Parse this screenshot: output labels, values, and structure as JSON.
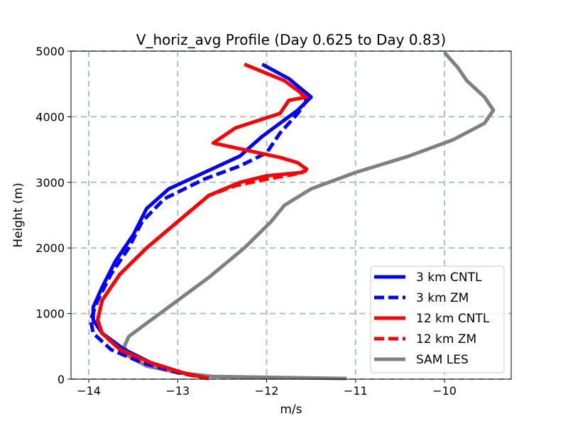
{
  "chart_data": {
    "type": "line",
    "title": "V_horiz_avg Profile (Day 0.625 to Day 0.83)",
    "xlabel": "m/s",
    "ylabel": "Height (m)",
    "xlim": [
      -14.2,
      -9.25
    ],
    "ylim": [
      0,
      5000
    ],
    "grid": true,
    "legend_position": "lower-right",
    "xticks": [
      -14,
      -13,
      -12,
      -11,
      -10
    ],
    "xtick_labels": [
      "−14",
      "−13",
      "−12",
      "−11",
      "−10"
    ],
    "yticks": [
      0,
      1000,
      2000,
      3000,
      4000,
      5000
    ],
    "ytick_labels": [
      "0",
      "1000",
      "2000",
      "3000",
      "4000",
      "5000"
    ],
    "series": [
      {
        "name": "3 km CNTL",
        "color": "#0000ff",
        "style": "solid",
        "points": [
          [
            -12.65,
            10
          ],
          [
            -12.95,
            100
          ],
          [
            -13.3,
            250
          ],
          [
            -13.6,
            450
          ],
          [
            -13.85,
            700
          ],
          [
            -13.95,
            900
          ],
          [
            -13.95,
            1100
          ],
          [
            -13.85,
            1400
          ],
          [
            -13.7,
            1800
          ],
          [
            -13.5,
            2200
          ],
          [
            -13.35,
            2600
          ],
          [
            -13.1,
            2900
          ],
          [
            -12.7,
            3150
          ],
          [
            -12.3,
            3400
          ],
          [
            -12.05,
            3700
          ],
          [
            -11.85,
            3900
          ],
          [
            -11.65,
            4100
          ],
          [
            -11.5,
            4300
          ],
          [
            -11.75,
            4580
          ],
          [
            -12.05,
            4800
          ]
        ]
      },
      {
        "name": "3 km ZM",
        "color": "#0000ff",
        "style": "dashed",
        "points": [
          [
            -12.65,
            10
          ],
          [
            -13.0,
            100
          ],
          [
            -13.4,
            250
          ],
          [
            -13.75,
            450
          ],
          [
            -13.95,
            700
          ],
          [
            -13.98,
            900
          ],
          [
            -13.9,
            1200
          ],
          [
            -13.75,
            1600
          ],
          [
            -13.55,
            2000
          ],
          [
            -13.4,
            2400
          ],
          [
            -13.15,
            2750
          ],
          [
            -12.7,
            3050
          ],
          [
            -12.3,
            3250
          ],
          [
            -12.0,
            3450
          ],
          [
            -11.85,
            3750
          ],
          [
            -11.65,
            4050
          ],
          [
            -11.55,
            4250
          ],
          [
            -11.7,
            4500
          ]
        ]
      },
      {
        "name": "12 km CNTL",
        "color": "#ff0000",
        "style": "solid",
        "points": [
          [
            -12.65,
            10
          ],
          [
            -12.95,
            100
          ],
          [
            -13.3,
            250
          ],
          [
            -13.65,
            450
          ],
          [
            -13.85,
            700
          ],
          [
            -13.9,
            900
          ],
          [
            -13.85,
            1200
          ],
          [
            -13.65,
            1600
          ],
          [
            -13.35,
            2000
          ],
          [
            -13.0,
            2400
          ],
          [
            -12.65,
            2800
          ],
          [
            -12.3,
            3000
          ],
          [
            -12.0,
            3100
          ],
          [
            -11.6,
            3150
          ],
          [
            -11.55,
            3200
          ],
          [
            -11.65,
            3300
          ],
          [
            -11.85,
            3380
          ],
          [
            -12.6,
            3600
          ],
          [
            -12.35,
            3830
          ],
          [
            -11.85,
            4050
          ],
          [
            -11.75,
            4250
          ],
          [
            -11.55,
            4300
          ],
          [
            -11.8,
            4550
          ],
          [
            -12.25,
            4800
          ]
        ]
      },
      {
        "name": "12 km ZM",
        "color": "#ff0000",
        "style": "dashed",
        "points": [
          [
            -12.65,
            10
          ],
          [
            -12.95,
            100
          ],
          [
            -13.3,
            250
          ],
          [
            -13.65,
            450
          ],
          [
            -13.85,
            700
          ],
          [
            -13.9,
            900
          ],
          [
            -13.85,
            1200
          ],
          [
            -13.65,
            1600
          ],
          [
            -13.35,
            2000
          ],
          [
            -13.0,
            2400
          ],
          [
            -12.65,
            2800
          ],
          [
            -12.35,
            2950
          ],
          [
            -12.0,
            3050
          ],
          [
            -11.7,
            3120
          ],
          [
            -11.55,
            3180
          ]
        ]
      },
      {
        "name": "SAM LES",
        "color": "#808080",
        "style": "solid",
        "points": [
          [
            -11.1,
            10
          ],
          [
            -12.6,
            40
          ],
          [
            -13.0,
            100
          ],
          [
            -13.35,
            200
          ],
          [
            -13.55,
            350
          ],
          [
            -13.6,
            500
          ],
          [
            -13.55,
            650
          ],
          [
            -13.3,
            900
          ],
          [
            -13.0,
            1200
          ],
          [
            -12.65,
            1550
          ],
          [
            -12.25,
            2000
          ],
          [
            -11.95,
            2400
          ],
          [
            -11.8,
            2650
          ],
          [
            -11.5,
            2900
          ],
          [
            -11.0,
            3150
          ],
          [
            -10.4,
            3400
          ],
          [
            -9.9,
            3650
          ],
          [
            -9.55,
            3900
          ],
          [
            -9.45,
            4100
          ],
          [
            -9.55,
            4300
          ],
          [
            -9.75,
            4550
          ],
          [
            -9.85,
            4750
          ],
          [
            -9.95,
            4900
          ],
          [
            -10.0,
            4980
          ]
        ]
      }
    ]
  }
}
